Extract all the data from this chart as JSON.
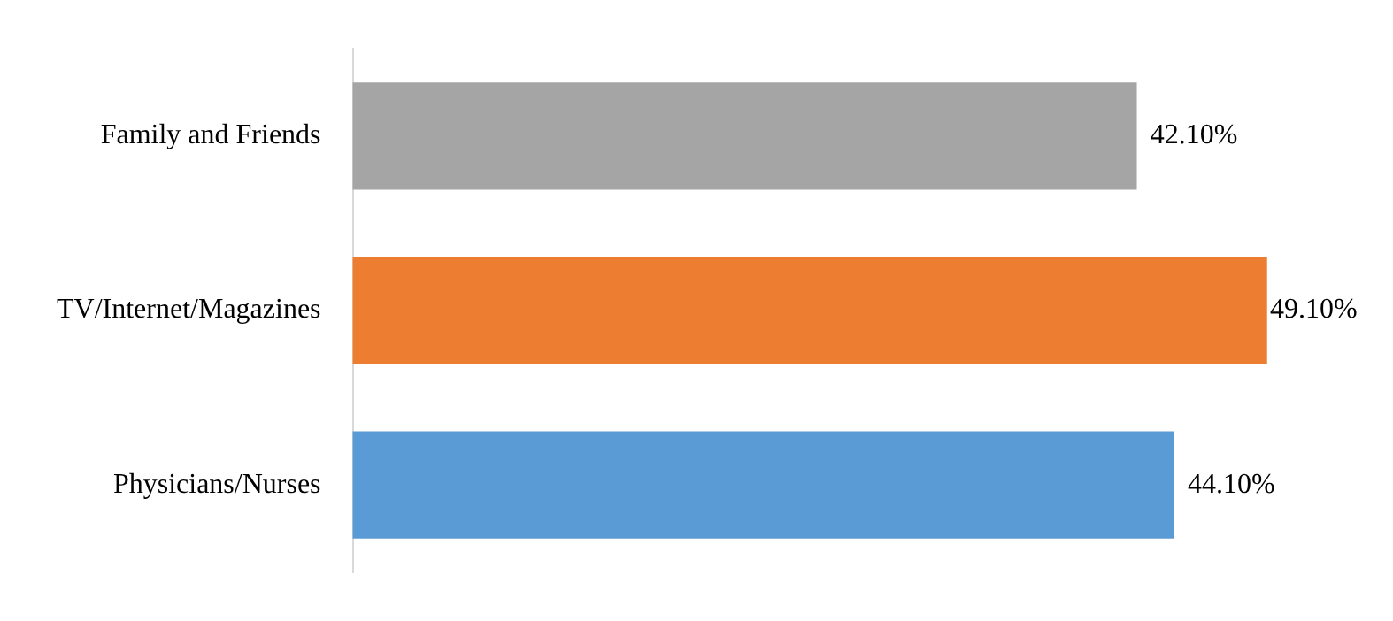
{
  "chart_data": {
    "type": "bar",
    "orientation": "horizontal",
    "categories": [
      "Family and Friends",
      "TV/Internet/Magazines",
      "Physicians/Nurses"
    ],
    "values": [
      42.1,
      49.1,
      44.1
    ],
    "colors": [
      "#a5a5a5",
      "#ed7d31",
      "#5b9bd5"
    ],
    "value_labels": [
      "42.10%",
      "49.10%",
      "44.10%"
    ],
    "tick_labels": "y",
    "legend": false
  }
}
